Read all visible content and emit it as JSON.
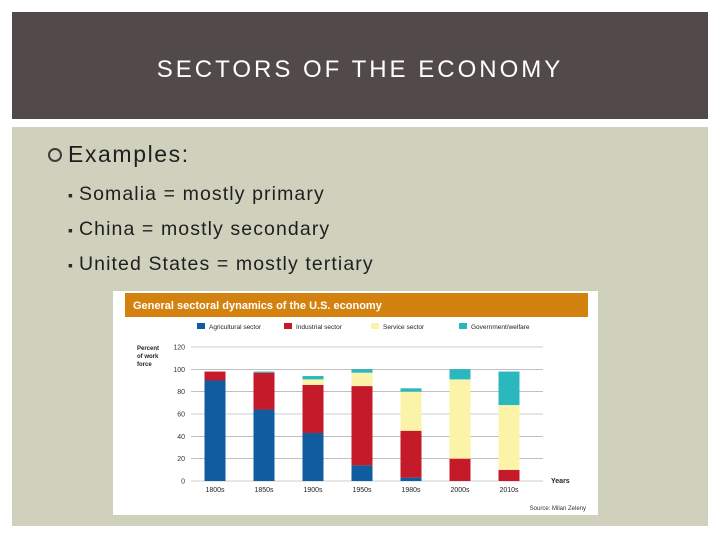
{
  "slide": {
    "title": "SECTORS OF THE ECONOMY",
    "bullet": "Examples:",
    "subbullets": [
      "Somalia = mostly primary",
      "China = mostly secondary",
      "United States = mostly tertiary"
    ]
  },
  "colors": {
    "title_bg": "#524a48",
    "content_bg": "#cfd1bc",
    "chart_header": "#d4820f",
    "agricultural": "#0f5c9e",
    "industrial": "#c41a2a",
    "service": "#fbf3a8",
    "government": "#2ab8bf"
  },
  "chart_data": {
    "type": "bar",
    "stacked": true,
    "title": "General sectoral dynamics of the U.S. economy",
    "ylabel": "Percent of work force",
    "xlabel": "Years",
    "ylim": [
      0,
      120
    ],
    "yticks": [
      0,
      20,
      40,
      60,
      80,
      100,
      120
    ],
    "grid": true,
    "legend_position": "top",
    "source": "Source: Milan Zeleny",
    "categories": [
      "1800s",
      "1850s",
      "1900s",
      "1950s",
      "1980s",
      "2000s",
      "2010s"
    ],
    "series": [
      {
        "name": "Agricultural sector",
        "color": "#0f5c9e",
        "values": [
          90,
          64,
          43,
          14,
          3,
          0,
          0
        ]
      },
      {
        "name": "Industrial sector",
        "color": "#c41a2a",
        "values": [
          8,
          33,
          43,
          71,
          42,
          20,
          10
        ]
      },
      {
        "name": "Service sector",
        "color": "#fbf3a8",
        "values": [
          0,
          0,
          5,
          12,
          35,
          71,
          58
        ]
      },
      {
        "name": "Government/welfare",
        "color": "#2ab8bf",
        "values": [
          0,
          1,
          3,
          3,
          3,
          9,
          30
        ]
      }
    ]
  }
}
